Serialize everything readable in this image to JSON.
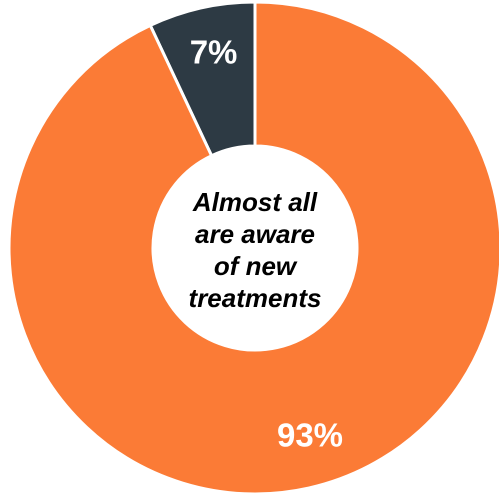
{
  "chart_data": {
    "type": "pie",
    "variant": "donut",
    "slices": [
      {
        "label": "7%",
        "value": 7,
        "color": "#2d3a44"
      },
      {
        "label": "93%",
        "value": 93,
        "color": "#fb7b36"
      }
    ],
    "center_text": [
      "Almost all",
      "are aware",
      "of new",
      "treatments"
    ],
    "start": "12 o'clock",
    "direction": "counter-clockwise for first slice"
  }
}
